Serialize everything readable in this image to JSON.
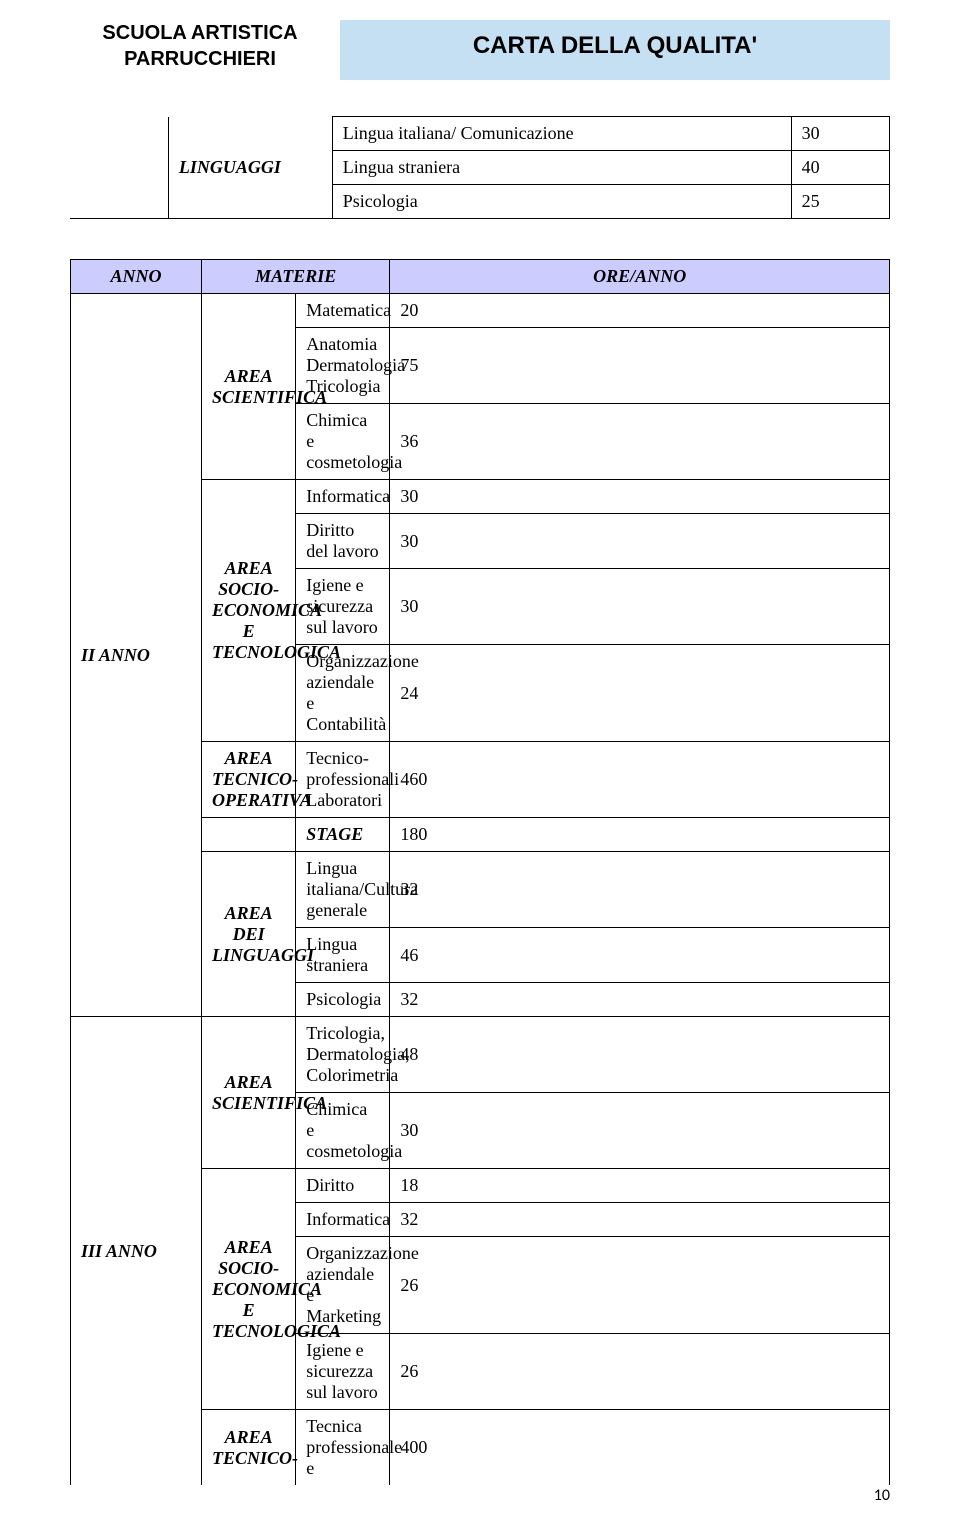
{
  "header": {
    "left_line1": "SCUOLA ARTISTICA",
    "left_line2": "PARRUCCHIERI",
    "banner": "CARTA DELLA QUALITA'"
  },
  "table1": {
    "area_label": "LINGUAGGI",
    "rows": [
      {
        "subject": "Lingua italiana/ Comunicazione",
        "hours": "30"
      },
      {
        "subject": "Lingua straniera",
        "hours": "40"
      },
      {
        "subject": "Psicologia",
        "hours": "25"
      }
    ]
  },
  "table2": {
    "head_year": "ANNO",
    "head_subjects": "MATERIE",
    "head_hours": "ORE/ANNO",
    "year2": {
      "label": "II ANNO",
      "area_sci": "AREA SCIENTIFICA",
      "area_eco": "AREA SOCIO-ECONOMICA E TECNOLOGICA",
      "area_tec": "AREA TECNICO-OPERATIVA",
      "area_ling": "AREA DEI LINGUAGGI",
      "sci": [
        {
          "s": "Matematica",
          "h": "20"
        },
        {
          "s": "Anatomia Dermatologia Tricologia",
          "h": "75"
        },
        {
          "s": "Chimica e cosmetologia",
          "h": "36"
        }
      ],
      "eco": [
        {
          "s": "Informatica",
          "h": "30"
        },
        {
          "s": "Diritto del lavoro",
          "h": "30"
        },
        {
          "s": "Igiene e sicurezza sul lavoro",
          "h": "30"
        },
        {
          "s": "Organizzazione aziendale e Contabilità",
          "h": "24"
        }
      ],
      "tec": [
        {
          "s": "Tecnico-professionali Laboratori",
          "h": "460"
        }
      ],
      "stage": {
        "s": "STAGE",
        "h": "180"
      },
      "ling": [
        {
          "s": "Lingua italiana/Cultura generale",
          "h": "32"
        },
        {
          "s": "Lingua straniera",
          "h": "46"
        },
        {
          "s": "Psicologia",
          "h": "32"
        }
      ]
    },
    "year3": {
      "label": "III ANNO",
      "area_sci": "AREA SCIENTIFICA",
      "area_eco": "AREA SOCIO-ECONOMICA E TECNOLOGICA",
      "area_tec": "AREA TECNICO-",
      "sci": [
        {
          "s": "Tricologia, Dermatologia, Colorimetria",
          "h": "48"
        },
        {
          "s": "Chimica e cosmetologia",
          "h": "30"
        }
      ],
      "eco": [
        {
          "s": "Diritto",
          "h": "18"
        },
        {
          "s": "Informatica",
          "h": "32"
        },
        {
          "s": "Organizzazione aziendale e Marketing",
          "h": "26"
        },
        {
          "s": "Igiene e sicurezza sul lavoro",
          "h": "26"
        }
      ],
      "tec": [
        {
          "s": "Tecnica professionale e",
          "h": "400"
        }
      ]
    }
  },
  "page_number": "10",
  "colors": {
    "banner_bg": "#c5e0f3",
    "head_bg": "#ccccff",
    "border": "#000000",
    "bg": "#ffffff"
  }
}
